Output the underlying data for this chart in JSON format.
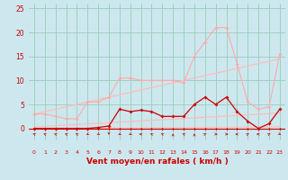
{
  "xlabel": "Vent moyen/en rafales ( km/h )",
  "background_color": "#cce8ee",
  "grid_color": "#99ccbb",
  "xlim": [
    -0.5,
    23.5
  ],
  "ylim": [
    -2.5,
    26
  ],
  "yticks": [
    0,
    5,
    10,
    15,
    20,
    25
  ],
  "xticks": [
    0,
    1,
    2,
    3,
    4,
    5,
    6,
    7,
    8,
    9,
    10,
    11,
    12,
    13,
    14,
    15,
    16,
    17,
    18,
    19,
    20,
    21,
    22,
    23
  ],
  "line_rafales": {
    "x": [
      0,
      1,
      2,
      3,
      4,
      5,
      6,
      7,
      8,
      9,
      10,
      11,
      12,
      13,
      14,
      15,
      16,
      17,
      18,
      19,
      20,
      21,
      22,
      23
    ],
    "y": [
      3.0,
      3.0,
      2.5,
      2.0,
      2.0,
      5.5,
      5.5,
      6.5,
      10.5,
      10.5,
      10.0,
      10.0,
      10.0,
      10.0,
      9.5,
      15.0,
      18.0,
      21.0,
      21.0,
      13.5,
      5.5,
      4.0,
      4.5,
      15.5
    ],
    "color": "#ffaaaa",
    "lw": 0.8,
    "marker": "D",
    "ms": 2.0
  },
  "line_moyen": {
    "x": [
      0,
      1,
      2,
      3,
      4,
      5,
      6,
      7,
      8,
      9,
      10,
      11,
      12,
      13,
      14,
      15,
      16,
      17,
      18,
      19,
      20,
      21,
      22,
      23
    ],
    "y": [
      0.0,
      0.0,
      0.0,
      0.0,
      0.0,
      0.0,
      0.2,
      0.5,
      4.0,
      3.5,
      3.8,
      3.5,
      2.5,
      2.5,
      2.5,
      5.0,
      6.5,
      5.0,
      6.5,
      3.5,
      1.5,
      0.0,
      1.0,
      4.0
    ],
    "color": "#cc0000",
    "lw": 0.9,
    "marker": "D",
    "ms": 2.0
  },
  "line_zero": {
    "x": [
      0,
      1,
      2,
      3,
      4,
      5,
      6,
      7,
      8,
      9,
      10,
      11,
      12,
      13,
      14,
      15,
      16,
      17,
      18,
      19,
      20,
      21,
      22,
      23
    ],
    "y": [
      0.0,
      0.0,
      0.0,
      0.0,
      0.0,
      0.0,
      0.0,
      0.0,
      0.0,
      0.0,
      0.0,
      0.0,
      0.0,
      0.0,
      0.0,
      0.0,
      0.0,
      0.0,
      0.0,
      0.0,
      0.0,
      0.0,
      0.0,
      0.0
    ],
    "color": "#cc0000",
    "lw": 0.7,
    "marker": "D",
    "ms": 1.5
  },
  "trend_rafales": {
    "x": [
      0,
      23
    ],
    "y": [
      3.0,
      14.5
    ],
    "color": "#ffbbbb",
    "lw": 0.9
  },
  "trend_moyen": {
    "x": [
      0,
      23
    ],
    "y": [
      0.3,
      3.2
    ],
    "color": "#ffbbbb",
    "lw": 0.9
  },
  "trend_zero": {
    "x": [
      0,
      23
    ],
    "y": [
      0.0,
      0.3
    ],
    "color": "#ffbbbb",
    "lw": 0.9
  },
  "wind_dirs": [
    225,
    225,
    225,
    225,
    225,
    315,
    315,
    0,
    315,
    315,
    270,
    225,
    225,
    180,
    225,
    180,
    135,
    90,
    90,
    270,
    135,
    270,
    135,
    45
  ]
}
